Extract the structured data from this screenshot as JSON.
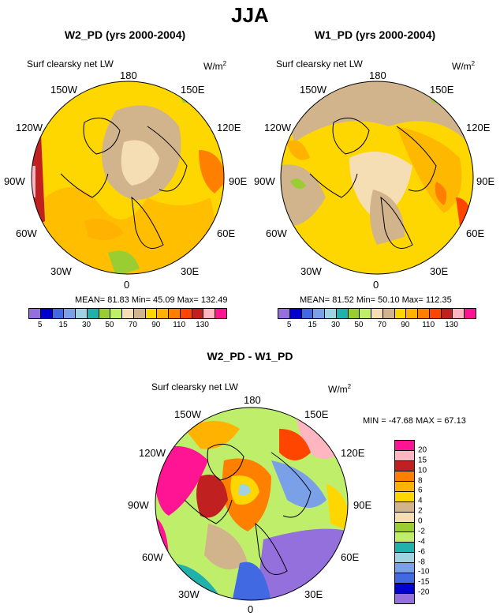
{
  "title": "JJA",
  "colors": {
    "abs_levels": [
      "#9370db",
      "#0000cd",
      "#4169e1",
      "#7aa0e8",
      "#9fd3e2",
      "#20b2aa",
      "#9acd32",
      "#bfef6a",
      "#f5deb3",
      "#d2b48c",
      "#ffd700",
      "#ffb300",
      "#ff7f00",
      "#ff4500",
      "#c02020",
      "#ffb6c1",
      "#ff1493"
    ],
    "diff_levels": [
      "#9370db",
      "#0000cd",
      "#4169e1",
      "#7aa0e8",
      "#9fd3e2",
      "#20b2aa",
      "#bfef6a",
      "#9acd32",
      "#f5deb3",
      "#d2b48c",
      "#ffd700",
      "#ffb300",
      "#ff7f00",
      "#c02020",
      "#ffb6c1",
      "#ff1493"
    ]
  },
  "panels": [
    {
      "title": "W2_PD (yrs 2000-2004)",
      "variable": "Surf clearsky net LW",
      "unit_base": "W/m",
      "unit_exp": "2",
      "lon_labels": [
        "180",
        "150E",
        "120E",
        "90E",
        "60E",
        "30E",
        "0",
        "30W",
        "60W",
        "90W",
        "120W",
        "150W"
      ],
      "stats": "MEAN=  81.83  Min=  45.09  Max= 132.49",
      "colorbar_ticks": [
        "5",
        "15",
        "30",
        "50",
        "70",
        "90",
        "110",
        "130"
      ]
    },
    {
      "title": "W1_PD (yrs 2000-2004)",
      "variable": "Surf clearsky net LW",
      "unit_base": "W/m",
      "unit_exp": "2",
      "lon_labels": [
        "180",
        "150E",
        "120E",
        "90E",
        "60E",
        "30E",
        "0",
        "30W",
        "60W",
        "90W",
        "120W",
        "150W"
      ],
      "stats": "MEAN=  81.52  Min=  50.10  Max= 112.35",
      "colorbar_ticks": [
        "5",
        "15",
        "30",
        "50",
        "70",
        "90",
        "110",
        "130"
      ]
    },
    {
      "title": "W2_PD - W1_PD",
      "variable": "Surf clearsky net LW",
      "unit_base": "W/m",
      "unit_exp": "2",
      "lon_labels": [
        "180",
        "150E",
        "120E",
        "90E",
        "60E",
        "30E",
        "0",
        "30W",
        "60W",
        "90W",
        "120W",
        "150W"
      ],
      "stats": "MIN = -47.68 MAX =  67.13",
      "colorbar_ticks": [
        "20",
        "15",
        "10",
        "8",
        "6",
        "4",
        "2",
        "0",
        "-2",
        "-4",
        "-6",
        "-8",
        "-10",
        "-15",
        "-20"
      ]
    }
  ]
}
